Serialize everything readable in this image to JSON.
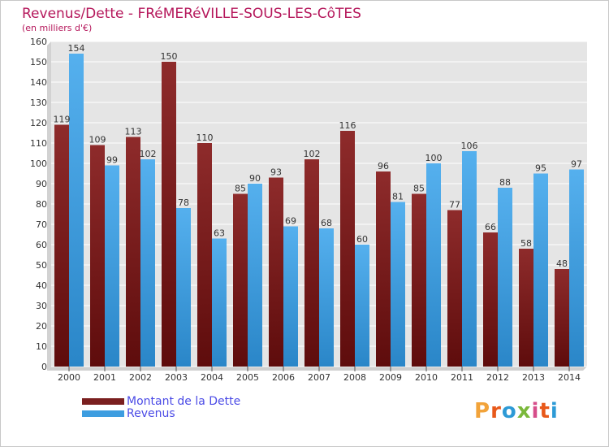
{
  "title": "Revenus/Dette - FRéMERéVILLE-SOUS-LES-CôTES",
  "subtitle": "(en milliers d'€)",
  "logo": {
    "text": "Proxiti",
    "colors": [
      "#f2a33a",
      "#e8591a",
      "#2d9ad6",
      "#7ab83a",
      "#d64d8a",
      "#e8591a",
      "#2d9ad6"
    ]
  },
  "colors": {
    "dette": "#7a1f1f",
    "revenus": "#3d9de0",
    "title": "#b5175b",
    "legend_text": "#4b4be6"
  },
  "chart_data": {
    "type": "bar",
    "categories": [
      "2000",
      "2001",
      "2002",
      "2003",
      "2004",
      "2005",
      "2006",
      "2007",
      "2008",
      "2009",
      "2010",
      "2011",
      "2012",
      "2013",
      "2014"
    ],
    "series": [
      {
        "name": "Montant de la Dette",
        "values": [
          119,
          109,
          113,
          150,
          110,
          85,
          93,
          102,
          116,
          96,
          85,
          77,
          66,
          58,
          48
        ]
      },
      {
        "name": "Revenus",
        "values": [
          154,
          99,
          102,
          78,
          63,
          90,
          69,
          68,
          60,
          81,
          100,
          106,
          88,
          95,
          97
        ]
      }
    ],
    "ylim": [
      0,
      160
    ],
    "yticks": [
      0,
      10,
      20,
      30,
      40,
      50,
      60,
      70,
      80,
      90,
      100,
      110,
      120,
      130,
      140,
      150,
      160
    ],
    "grid": true,
    "legend": "bottom-left"
  }
}
